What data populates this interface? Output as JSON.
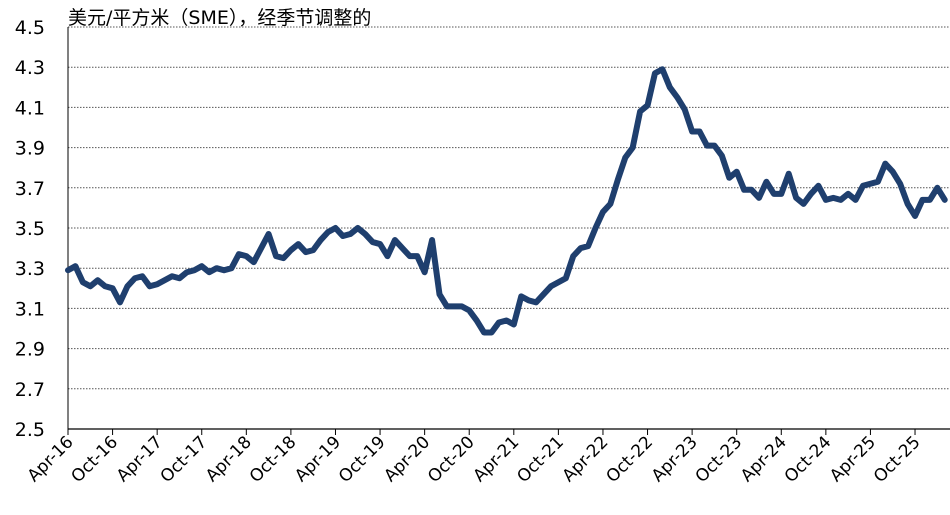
{
  "chart_data": {
    "type": "line",
    "title": "美元/平方米（SME），经季节调整的",
    "categories": [
      "Apr-16",
      null,
      null,
      null,
      null,
      null,
      "Oct-16",
      null,
      null,
      null,
      null,
      null,
      "Apr-17",
      null,
      null,
      null,
      null,
      null,
      "Oct-17",
      null,
      null,
      null,
      null,
      null,
      "Apr-18",
      null,
      null,
      null,
      null,
      null,
      "Oct-18",
      null,
      null,
      null,
      null,
      null,
      "Apr-19",
      null,
      null,
      null,
      null,
      null,
      "Oct-19",
      null,
      null,
      null,
      null,
      null,
      "Apr-20",
      null,
      null,
      null,
      null,
      null,
      "Oct-20",
      null,
      null,
      null,
      null,
      null,
      "Apr-21",
      null,
      null,
      null,
      null,
      null,
      "Oct-21",
      null,
      null,
      null,
      null,
      null,
      "Apr-22",
      null,
      null,
      null,
      null,
      null,
      "Oct-22",
      null,
      null,
      null,
      null,
      null,
      "Apr-23",
      null,
      null,
      null,
      null,
      null,
      "Oct-23",
      null,
      null,
      null,
      null,
      null,
      "Apr-24",
      null,
      null,
      null,
      null,
      null,
      "Oct-24",
      null,
      null,
      null,
      null,
      null,
      "Apr-25",
      null,
      null,
      null,
      null,
      null,
      "Oct-25",
      null,
      null,
      null,
      null
    ],
    "series": [
      {
        "color": "#1f3f6e",
        "values": [
          3.29,
          3.31,
          3.23,
          3.21,
          3.24,
          3.21,
          3.2,
          3.13,
          3.21,
          3.25,
          3.26,
          3.21,
          3.22,
          3.24,
          3.26,
          3.25,
          3.28,
          3.29,
          3.31,
          3.28,
          3.3,
          3.29,
          3.3,
          3.37,
          3.36,
          3.33,
          3.4,
          3.47,
          3.36,
          3.35,
          3.39,
          3.42,
          3.38,
          3.39,
          3.44,
          3.48,
          3.5,
          3.46,
          3.47,
          3.5,
          3.47,
          3.43,
          3.42,
          3.36,
          3.44,
          3.4,
          3.36,
          3.36,
          3.28,
          3.44,
          3.17,
          3.11,
          3.11,
          3.11,
          3.09,
          3.04,
          2.98,
          2.98,
          3.03,
          3.04,
          3.02,
          3.16,
          3.14,
          3.13,
          3.17,
          3.21,
          3.23,
          3.25,
          3.36,
          3.4,
          3.41,
          3.5,
          3.58,
          3.62,
          3.74,
          3.85,
          3.9,
          4.08,
          4.11,
          4.27,
          4.29,
          4.2,
          4.15,
          4.09,
          3.98,
          3.98,
          3.91,
          3.91,
          3.86,
          3.75,
          3.78,
          3.69,
          3.69,
          3.65,
          3.73,
          3.67,
          3.67,
          3.77,
          3.65,
          3.62,
          3.67,
          3.71,
          3.64,
          3.65,
          3.64,
          3.67,
          3.64,
          3.71,
          3.72,
          3.73,
          3.82,
          3.78,
          3.72,
          3.62,
          3.56,
          3.64,
          3.64,
          3.7,
          3.64
        ]
      }
    ],
    "ylim": [
      2.5,
      4.5
    ],
    "yticks": [
      2.5,
      2.7,
      2.9,
      3.1,
      3.3,
      3.5,
      3.7,
      3.9,
      4.1,
      4.3,
      4.5
    ],
    "grid": true
  }
}
